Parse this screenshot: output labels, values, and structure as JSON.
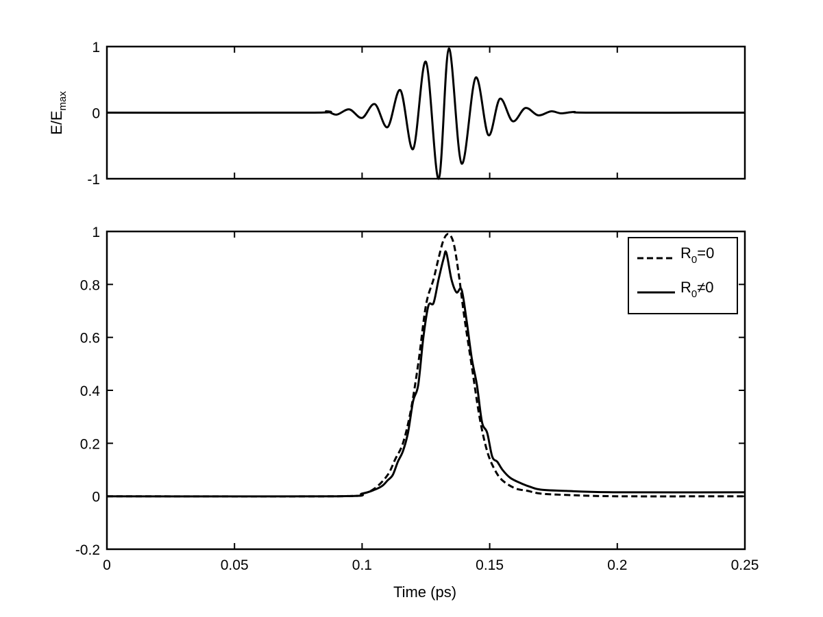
{
  "chart_data": [
    {
      "type": "line",
      "title": "",
      "xlabel": "",
      "ylabel": "E/E",
      "ylabel_subscript": "max",
      "xlim": [
        0,
        0.25
      ],
      "ylim": [
        -1,
        1
      ],
      "xticks": [
        0,
        0.05,
        0.1,
        0.15,
        0.2,
        0.25
      ],
      "xtick_labels_shown": false,
      "yticks": [
        -1,
        0,
        1
      ],
      "ytick_labels": [
        "-1",
        "0",
        "1"
      ],
      "grid": false,
      "legend": "none",
      "series": [
        {
          "color": "#000000",
          "style": "solid",
          "x": [
            0,
            0.08,
            0.086,
            0.09,
            0.095,
            0.1,
            0.105,
            0.11,
            0.115,
            0.12,
            0.125,
            0.13,
            0.134,
            0.139,
            0.1445,
            0.1495,
            0.154,
            0.159,
            0.164,
            0.169,
            0.174,
            0.178,
            0.183,
            0.19,
            0.25
          ],
          "y": [
            0,
            0,
            0.02,
            -0.03,
            0.05,
            -0.08,
            0.13,
            -0.22,
            0.34,
            -0.55,
            0.77,
            -1.0,
            0.97,
            -0.77,
            0.53,
            -0.34,
            0.21,
            -0.13,
            0.07,
            -0.04,
            0.02,
            -0.01,
            0.01,
            0,
            0
          ]
        }
      ]
    },
    {
      "type": "line",
      "title": "",
      "xlabel": "Time (ps)",
      "ylabel": "",
      "xlim": [
        0,
        0.25
      ],
      "ylim": [
        -0.2,
        1
      ],
      "xticks": [
        0,
        0.05,
        0.1,
        0.15,
        0.2,
        0.25
      ],
      "xtick_labels": [
        "0",
        "0.05",
        "0.1",
        "0.15",
        "0.2",
        "0.25"
      ],
      "yticks": [
        -0.2,
        0,
        0.2,
        0.4,
        0.6,
        0.8,
        1
      ],
      "ytick_labels": [
        "-0.2",
        "0",
        "0.2",
        "0.4",
        "0.6",
        "0.8",
        "1"
      ],
      "grid": false,
      "legend": "top-right",
      "series": [
        {
          "name": "R",
          "name_subscript": "0",
          "name_suffix": "=0",
          "color": "#000000",
          "style": "dashed",
          "x": [
            0,
            0.09,
            0.1,
            0.105,
            0.11,
            0.113,
            0.116,
            0.119,
            0.122,
            0.125,
            0.128,
            0.13,
            0.132,
            0.134,
            0.136,
            0.138,
            0.14,
            0.143,
            0.146,
            0.149,
            0.152,
            0.155,
            0.16,
            0.165,
            0.17,
            0.18,
            0.2,
            0.25
          ],
          "y": [
            0,
            0,
            0.01,
            0.03,
            0.08,
            0.14,
            0.2,
            0.32,
            0.5,
            0.72,
            0.82,
            0.9,
            0.97,
            0.99,
            0.95,
            0.83,
            0.68,
            0.49,
            0.3,
            0.17,
            0.1,
            0.06,
            0.03,
            0.02,
            0.01,
            0.005,
            0,
            0
          ]
        },
        {
          "name": "R",
          "name_subscript": "0",
          "name_suffix": "≠0",
          "color": "#000000",
          "style": "solid",
          "x": [
            0,
            0.09,
            0.1,
            0.105,
            0.108,
            0.11,
            0.112,
            0.114,
            0.116,
            0.118,
            0.12,
            0.122,
            0.124,
            0.126,
            0.128,
            0.13,
            0.132,
            0.133,
            0.135,
            0.137,
            0.139,
            0.141,
            0.143,
            0.145,
            0.147,
            0.149,
            0.151,
            0.153,
            0.155,
            0.158,
            0.162,
            0.166,
            0.17,
            0.18,
            0.2,
            0.25
          ],
          "y": [
            0,
            0,
            0.01,
            0.025,
            0.04,
            0.06,
            0.08,
            0.13,
            0.17,
            0.24,
            0.36,
            0.42,
            0.6,
            0.72,
            0.73,
            0.82,
            0.9,
            0.92,
            0.82,
            0.77,
            0.78,
            0.66,
            0.52,
            0.42,
            0.28,
            0.24,
            0.15,
            0.13,
            0.1,
            0.07,
            0.05,
            0.035,
            0.025,
            0.02,
            0.015,
            0.015
          ]
        }
      ]
    }
  ]
}
